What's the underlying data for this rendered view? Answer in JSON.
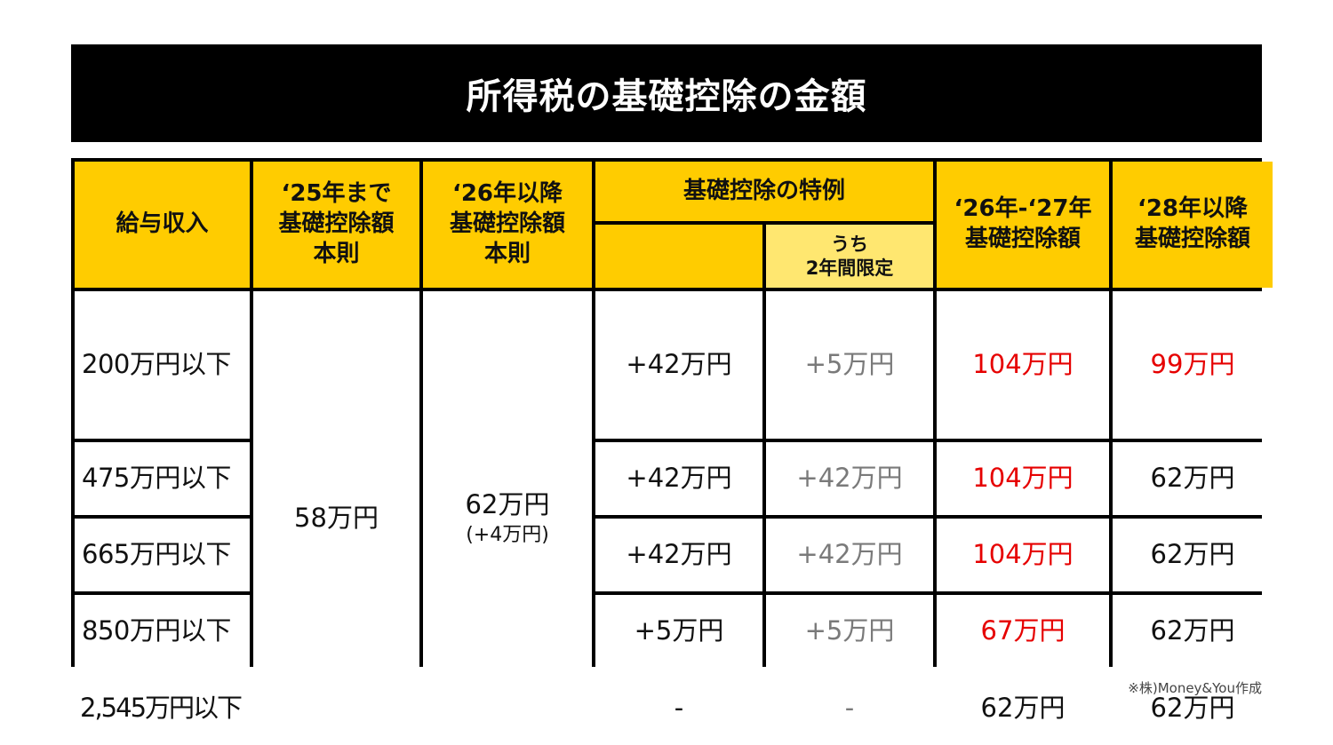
{
  "title": "所得税の基礎控除の金額",
  "header": {
    "income": "給与収入",
    "until25": [
      "‘25年まで",
      "基礎控除額",
      "本則"
    ],
    "from26": [
      "‘26年以降",
      "基礎控除額",
      "本則"
    ],
    "special": "基礎控除の特例",
    "special_sub": [
      "うち",
      "2年間限定"
    ],
    "y2627": [
      "‘26年-‘27年",
      "基礎控除額"
    ],
    "from28": [
      "‘28年以降",
      "基礎控除額"
    ]
  },
  "merged": {
    "until25_value": "58万円",
    "from26_value": "62万円",
    "from26_note": "(+4万円)"
  },
  "rows": [
    {
      "income": "200万円以下",
      "special": "+42万円",
      "limited": "+5万円",
      "y2627": "104万円",
      "from28": "99万円"
    },
    {
      "income": "475万円以下",
      "special": "+42万円",
      "limited": "+42万円",
      "y2627": "104万円",
      "from28": "62万円"
    },
    {
      "income": "665万円以下",
      "special": "+42万円",
      "limited": "+42万円",
      "y2627": "104万円",
      "from28": "62万円"
    },
    {
      "income": "850万円以下",
      "special": "+5万円",
      "limited": "+5万円",
      "y2627": "67万円",
      "from28": "62万円"
    },
    {
      "income": "2,545万円以下",
      "special": "-",
      "limited": "-",
      "y2627": "62万円",
      "from28": "62万円"
    }
  ],
  "colors": {
    "header": "#ffcc00",
    "header_sub": "#ffe770",
    "highlight": "#e60000",
    "muted": "#7a7a7a"
  },
  "footnote": "※株)Money&You作成"
}
